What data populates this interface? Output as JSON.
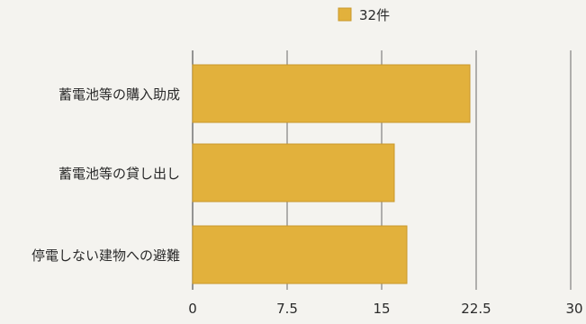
{
  "chart_data": {
    "type": "bar",
    "orientation": "horizontal",
    "categories": [
      "蓄電池等の購入助成",
      "蓄電池等の貸し出し",
      "停電しない建物への避難"
    ],
    "series": [
      {
        "name": "32件",
        "values": [
          22,
          16,
          17
        ]
      }
    ],
    "xlim": [
      0,
      30
    ],
    "xticks": [
      0,
      7.5,
      15,
      22.5,
      30
    ],
    "xtick_labels": [
      "0",
      "7.5",
      "15",
      "22.5",
      "30"
    ],
    "grid": true,
    "legend_position": "top"
  },
  "colors": {
    "bar": "#e2b13c",
    "bar_stroke": "#c9982b",
    "grid": "#6a6a6a",
    "text": "#2a2a2a",
    "background": "#f4f3ef"
  }
}
